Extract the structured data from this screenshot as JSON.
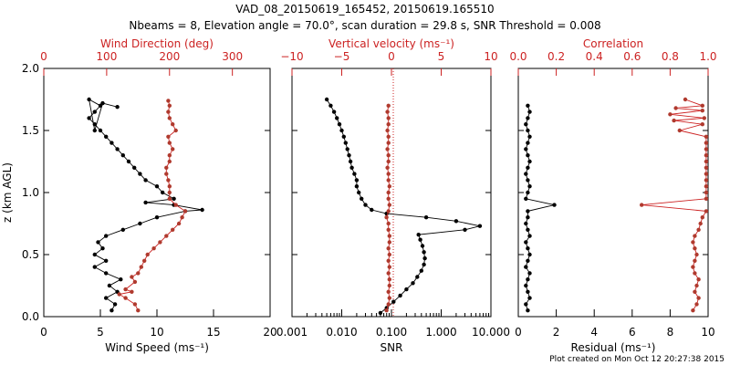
{
  "title_line1": "VAD_08_20150619_165452, 20150619.165510",
  "title_line2": "Nbeams = 8, Elevation angle = 70.0°, scan duration = 29.8 s, SNR Threshold = 0.008",
  "footer": "Plot created on Mon Oct 12 20:27:38 2015",
  "colors": {
    "black": "#000000",
    "red": "#cc2222",
    "dark_red": "#b03a2e"
  },
  "chart_data": [
    {
      "type": "scatter",
      "panel": "wind",
      "ylabel": "z (km AGL)",
      "ylim": [
        0,
        2.0
      ],
      "yticks": [
        "0.0",
        "0.5",
        "1.0",
        "1.5",
        "2.0"
      ],
      "bottom_axis": {
        "label": "Wind Speed (ms⁻¹)",
        "range": [
          0,
          20
        ],
        "ticks": [
          "0",
          "5",
          "10",
          "15",
          "20"
        ]
      },
      "top_axis": {
        "label": "Wind Direction (deg)",
        "range": [
          0,
          360
        ],
        "ticks": [
          "0",
          "100",
          "200",
          "300"
        ]
      },
      "series": [
        {
          "name": "Wind Speed",
          "axis": "bottom",
          "color": "#000000",
          "points": [
            [
              6.0,
              0.05
            ],
            [
              6.3,
              0.1
            ],
            [
              5.5,
              0.15
            ],
            [
              6.5,
              0.2
            ],
            [
              5.8,
              0.25
            ],
            [
              6.8,
              0.3
            ],
            [
              5.5,
              0.35
            ],
            [
              4.5,
              0.4
            ],
            [
              5.5,
              0.45
            ],
            [
              4.5,
              0.5
            ],
            [
              5.2,
              0.55
            ],
            [
              4.8,
              0.6
            ],
            [
              5.5,
              0.65
            ],
            [
              7.0,
              0.7
            ],
            [
              8.5,
              0.75
            ],
            [
              10.0,
              0.8
            ],
            [
              12.5,
              0.85
            ],
            [
              14.0,
              0.86
            ],
            [
              11.5,
              0.9
            ],
            [
              9.0,
              0.92
            ],
            [
              11.5,
              0.95
            ],
            [
              10.5,
              1.0
            ],
            [
              10.0,
              1.05
            ],
            [
              9.0,
              1.1
            ],
            [
              8.5,
              1.15
            ],
            [
              8.0,
              1.2
            ],
            [
              7.5,
              1.25
            ],
            [
              7.0,
              1.3
            ],
            [
              6.5,
              1.35
            ],
            [
              6.0,
              1.4
            ],
            [
              5.5,
              1.45
            ],
            [
              5.0,
              1.5
            ],
            [
              4.5,
              1.55
            ],
            [
              4.0,
              1.6
            ],
            [
              4.5,
              1.65
            ],
            [
              5.0,
              1.7
            ],
            [
              4.0,
              1.75
            ],
            [
              4.5,
              1.5
            ],
            [
              5.2,
              1.72
            ],
            [
              6.5,
              1.69
            ]
          ]
        },
        {
          "name": "Wind Direction",
          "axis": "top",
          "color": "#b03a2e",
          "points": [
            [
              150,
              0.05
            ],
            [
              145,
              0.1
            ],
            [
              130,
              0.15
            ],
            [
              120,
              0.18
            ],
            [
              140,
              0.2
            ],
            [
              130,
              0.22
            ],
            [
              145,
              0.28
            ],
            [
              140,
              0.32
            ],
            [
              150,
              0.35
            ],
            [
              155,
              0.4
            ],
            [
              160,
              0.45
            ],
            [
              165,
              0.5
            ],
            [
              175,
              0.55
            ],
            [
              185,
              0.6
            ],
            [
              195,
              0.65
            ],
            [
              205,
              0.7
            ],
            [
              215,
              0.75
            ],
            [
              220,
              0.8
            ],
            [
              225,
              0.85
            ],
            [
              210,
              0.9
            ],
            [
              200,
              0.95
            ],
            [
              200,
              1.0
            ],
            [
              200,
              1.05
            ],
            [
              198,
              1.1
            ],
            [
              195,
              1.15
            ],
            [
              195,
              1.2
            ],
            [
              200,
              1.25
            ],
            [
              200,
              1.3
            ],
            [
              205,
              1.35
            ],
            [
              200,
              1.4
            ],
            [
              198,
              1.45
            ],
            [
              210,
              1.5
            ],
            [
              205,
              1.55
            ],
            [
              200,
              1.6
            ],
            [
              198,
              1.65
            ],
            [
              200,
              1.7
            ],
            [
              198,
              1.74
            ]
          ]
        }
      ]
    },
    {
      "type": "scatter",
      "panel": "snr",
      "ylim": [
        0,
        2.0
      ],
      "bottom_axis": {
        "label": "SNR",
        "scale": "log",
        "range": [
          0.001,
          10
        ],
        "ticks": [
          "0.001",
          "0.010",
          "0.100",
          "1.000",
          "10.000"
        ]
      },
      "top_axis": {
        "label": "Vertical velocity (ms⁻¹)",
        "range": [
          -10,
          10
        ],
        "ticks": [
          "−10",
          "−5",
          "0",
          "5",
          "10"
        ]
      },
      "series": [
        {
          "name": "SNR",
          "axis": "bottom",
          "color": "#000000",
          "points": [
            [
              0.06,
              0.03
            ],
            [
              0.08,
              0.07
            ],
            [
              0.11,
              0.12
            ],
            [
              0.15,
              0.17
            ],
            [
              0.2,
              0.22
            ],
            [
              0.27,
              0.27
            ],
            [
              0.33,
              0.32
            ],
            [
              0.4,
              0.37
            ],
            [
              0.45,
              0.42
            ],
            [
              0.47,
              0.47
            ],
            [
              0.45,
              0.52
            ],
            [
              0.42,
              0.57
            ],
            [
              0.38,
              0.62
            ],
            [
              0.35,
              0.66
            ],
            [
              3.0,
              0.7
            ],
            [
              6.0,
              0.73
            ],
            [
              2.0,
              0.77
            ],
            [
              0.5,
              0.8
            ],
            [
              0.08,
              0.83
            ],
            [
              0.04,
              0.86
            ],
            [
              0.03,
              0.9
            ],
            [
              0.025,
              0.95
            ],
            [
              0.022,
              1.0
            ],
            [
              0.02,
              1.05
            ],
            [
              0.02,
              1.1
            ],
            [
              0.018,
              1.15
            ],
            [
              0.016,
              1.2
            ],
            [
              0.015,
              1.25
            ],
            [
              0.014,
              1.3
            ],
            [
              0.013,
              1.35
            ],
            [
              0.012,
              1.4
            ],
            [
              0.011,
              1.45
            ],
            [
              0.01,
              1.5
            ],
            [
              0.009,
              1.55
            ],
            [
              0.008,
              1.6
            ],
            [
              0.007,
              1.65
            ],
            [
              0.006,
              1.7
            ],
            [
              0.005,
              1.75
            ]
          ]
        },
        {
          "name": "Vertical velocity",
          "axis": "top",
          "color": "#b03a2e",
          "points": [
            [
              -0.5,
              0.05
            ],
            [
              -0.3,
              0.1
            ],
            [
              -0.2,
              0.15
            ],
            [
              -0.3,
              0.2
            ],
            [
              -0.2,
              0.25
            ],
            [
              -0.2,
              0.3
            ],
            [
              -0.3,
              0.35
            ],
            [
              -0.2,
              0.4
            ],
            [
              -0.3,
              0.45
            ],
            [
              -0.2,
              0.5
            ],
            [
              -0.3,
              0.55
            ],
            [
              -0.2,
              0.6
            ],
            [
              -0.2,
              0.65
            ],
            [
              -0.3,
              0.7
            ],
            [
              -0.3,
              0.75
            ],
            [
              -0.5,
              0.8
            ],
            [
              -0.3,
              0.85
            ],
            [
              -0.2,
              0.9
            ],
            [
              -0.3,
              0.95
            ],
            [
              -0.3,
              1.0
            ],
            [
              -0.2,
              1.05
            ],
            [
              -0.3,
              1.1
            ],
            [
              -0.3,
              1.15
            ],
            [
              -0.4,
              1.2
            ],
            [
              -0.3,
              1.25
            ],
            [
              -0.3,
              1.3
            ],
            [
              -0.4,
              1.35
            ],
            [
              -0.3,
              1.4
            ],
            [
              -0.3,
              1.45
            ],
            [
              -0.4,
              1.5
            ],
            [
              -0.3,
              1.55
            ],
            [
              -0.3,
              1.6
            ],
            [
              -0.4,
              1.65
            ],
            [
              -0.3,
              1.7
            ]
          ]
        }
      ]
    },
    {
      "type": "scatter",
      "panel": "residual",
      "ylim": [
        0,
        2.0
      ],
      "bottom_axis": {
        "label": "Residual (ms⁻¹)",
        "range": [
          0,
          10
        ],
        "ticks": [
          "0",
          "2",
          "4",
          "6",
          "8",
          "10"
        ]
      },
      "top_axis": {
        "label": "Correlation",
        "range": [
          0,
          1.0
        ],
        "ticks": [
          "0.0",
          "0.2",
          "0.4",
          "0.6",
          "0.8",
          "1.0"
        ]
      },
      "series": [
        {
          "name": "Residual",
          "axis": "bottom",
          "color": "#000000",
          "points": [
            [
              0.5,
              0.05
            ],
            [
              0.4,
              0.1
            ],
            [
              0.6,
              0.15
            ],
            [
              0.5,
              0.2
            ],
            [
              0.4,
              0.25
            ],
            [
              0.5,
              0.3
            ],
            [
              0.6,
              0.35
            ],
            [
              0.4,
              0.4
            ],
            [
              0.5,
              0.45
            ],
            [
              0.6,
              0.5
            ],
            [
              0.5,
              0.55
            ],
            [
              0.4,
              0.6
            ],
            [
              0.6,
              0.65
            ],
            [
              0.5,
              0.7
            ],
            [
              0.4,
              0.75
            ],
            [
              0.5,
              0.8
            ],
            [
              0.5,
              0.85
            ],
            [
              1.9,
              0.9
            ],
            [
              0.4,
              0.95
            ],
            [
              0.5,
              1.0
            ],
            [
              0.6,
              1.05
            ],
            [
              0.5,
              1.1
            ],
            [
              0.4,
              1.15
            ],
            [
              0.5,
              1.2
            ],
            [
              0.6,
              1.25
            ],
            [
              0.5,
              1.3
            ],
            [
              0.4,
              1.35
            ],
            [
              0.5,
              1.4
            ],
            [
              0.6,
              1.45
            ],
            [
              0.5,
              1.5
            ],
            [
              0.4,
              1.55
            ],
            [
              0.5,
              1.6
            ],
            [
              0.6,
              1.65
            ],
            [
              0.5,
              1.7
            ]
          ]
        },
        {
          "name": "Correlation",
          "axis": "top",
          "color": "#b03a2e",
          "points": [
            [
              0.92,
              0.05
            ],
            [
              0.94,
              0.1
            ],
            [
              0.95,
              0.15
            ],
            [
              0.93,
              0.2
            ],
            [
              0.94,
              0.25
            ],
            [
              0.95,
              0.3
            ],
            [
              0.93,
              0.35
            ],
            [
              0.92,
              0.4
            ],
            [
              0.93,
              0.45
            ],
            [
              0.94,
              0.5
            ],
            [
              0.93,
              0.55
            ],
            [
              0.92,
              0.6
            ],
            [
              0.93,
              0.65
            ],
            [
              0.95,
              0.7
            ],
            [
              0.96,
              0.75
            ],
            [
              0.97,
              0.8
            ],
            [
              0.99,
              0.85
            ],
            [
              0.65,
              0.9
            ],
            [
              0.99,
              0.95
            ],
            [
              0.99,
              1.0
            ],
            [
              0.99,
              1.05
            ],
            [
              0.99,
              1.1
            ],
            [
              0.99,
              1.15
            ],
            [
              0.99,
              1.2
            ],
            [
              0.99,
              1.25
            ],
            [
              0.99,
              1.3
            ],
            [
              0.99,
              1.35
            ],
            [
              0.99,
              1.4
            ],
            [
              0.99,
              1.45
            ],
            [
              0.85,
              1.5
            ],
            [
              0.97,
              1.55
            ],
            [
              0.82,
              1.58
            ],
            [
              0.98,
              1.6
            ],
            [
              0.8,
              1.63
            ],
            [
              0.97,
              1.66
            ],
            [
              0.83,
              1.68
            ],
            [
              0.97,
              1.7
            ],
            [
              0.88,
              1.75
            ]
          ]
        }
      ]
    }
  ]
}
